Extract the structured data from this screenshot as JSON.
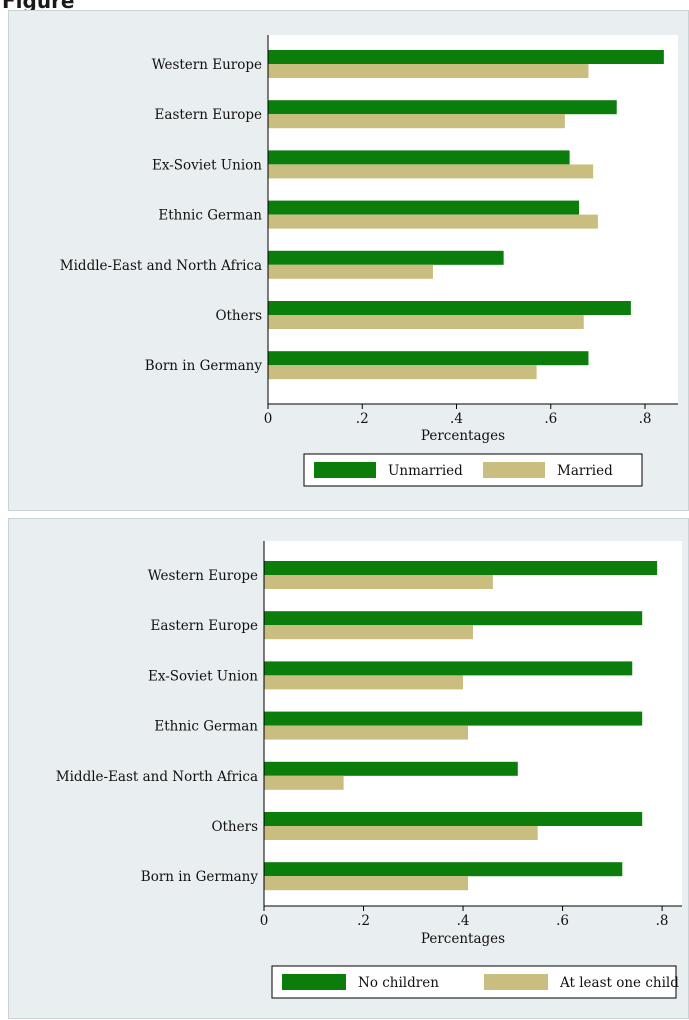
{
  "header_fragment": "Figure",
  "colors": {
    "series1": "#0b7d0b",
    "series2": "#c9bd80",
    "panel_bg": "#e9eef0",
    "plot_bg": "#ffffff"
  },
  "chart_data": [
    {
      "type": "bar",
      "orientation": "horizontal",
      "categories": [
        "Western Europe",
        "Eastern Europe",
        "Ex-Soviet Union",
        "Ethnic German",
        "Middle-East and North Africa",
        "Others",
        "Born in Germany"
      ],
      "category_labels": [
        "Western Europe",
        "Eastern Europe",
        "Ex-Soviet Union",
        "Ethnic German",
        "Middle-East and North Africa",
        "Others",
        "Born in Germany"
      ],
      "series": [
        {
          "name": "Unmarried",
          "color": "#0b7d0b",
          "values": [
            0.84,
            0.74,
            0.64,
            0.66,
            0.5,
            0.77,
            0.68
          ]
        },
        {
          "name": "Married",
          "color": "#c9bd80",
          "values": [
            0.68,
            0.63,
            0.69,
            0.7,
            0.35,
            0.67,
            0.57
          ]
        }
      ],
      "xlabel": "Percentages",
      "xlim": [
        0,
        0.87
      ],
      "xticks": [
        0,
        0.2,
        0.4,
        0.6,
        0.8
      ],
      "xtick_labels": [
        "0",
        ".2",
        ".4",
        ".6",
        ".8"
      ],
      "grid": false,
      "legend_position": "bottom"
    },
    {
      "type": "bar",
      "orientation": "horizontal",
      "categories": [
        "Western Europe",
        "Eastern Europe",
        "Ex-Soviet Union",
        "Ethnic German",
        "Middle-East and North Africa",
        "Others",
        "Born in Germany"
      ],
      "category_labels": [
        "Western Europe",
        "Eastern Europe",
        "Ex-Soviet Union",
        "Ethnic German",
        "Middle-East and North Africa",
        "Others",
        "Born in Germany"
      ],
      "series": [
        {
          "name": "No children",
          "color": "#0b7d0b",
          "values": [
            0.79,
            0.76,
            0.74,
            0.76,
            0.51,
            0.76,
            0.72
          ]
        },
        {
          "name": "At least one child",
          "color": "#c9bd80",
          "values": [
            0.46,
            0.42,
            0.4,
            0.41,
            0.16,
            0.55,
            0.41
          ]
        }
      ],
      "xlabel": "Percentages",
      "xlim": [
        0,
        0.84
      ],
      "xticks": [
        0,
        0.2,
        0.4,
        0.6,
        0.8
      ],
      "xtick_labels": [
        "0",
        ".2",
        ".4",
        ".6",
        ".8"
      ],
      "grid": false,
      "legend_position": "bottom"
    }
  ]
}
